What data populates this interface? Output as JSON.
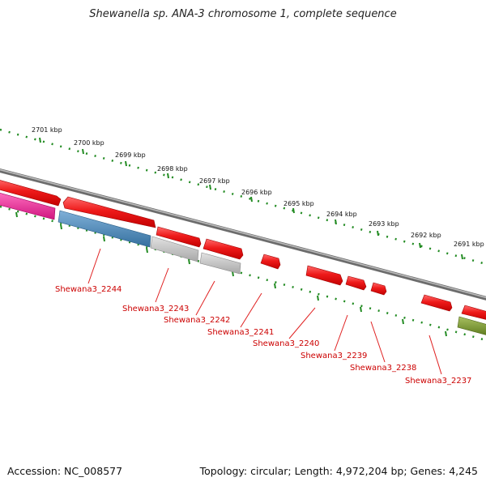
{
  "title": "Shewanella sp. ANA-3 chromosome 1, complete sequence",
  "footer": {
    "accession": "Accession: NC_008577",
    "summary": "Topology: circular; Length: 4,972,204 bp; Genes: 4,245"
  },
  "ruler_labels": [
    "2701 kbp",
    "2700 kbp",
    "2699 kbp",
    "2698 kbp",
    "2697 kbp",
    "2696 kbp",
    "2695 kbp",
    "2694 kbp",
    "2693 kbp",
    "2692 kbp",
    "2691 kbp"
  ],
  "gene_labels": [
    "Shewana3_2244",
    "Shewana3_2243",
    "Shewana3_2242",
    "Shewana3_2241",
    "Shewana3_2240",
    "Shewana3_2239",
    "Shewana3_2238",
    "Shewana3_2237"
  ],
  "colors": {
    "backbone": "#8a8a8a",
    "red_gene": "#e8141a",
    "pink_gene": "#e0208f",
    "blue_gene": "#3f7fb3",
    "grey_gene": "#b8b8b8",
    "olive_gene": "#6f8f2a",
    "ruler": "#228b22",
    "label_text": "#cc0000"
  }
}
